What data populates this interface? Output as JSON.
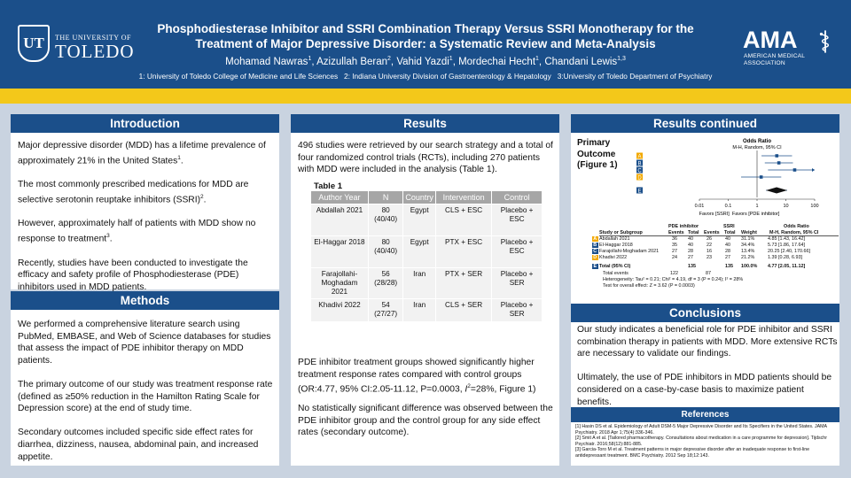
{
  "header": {
    "university_small": "THE UNIVERSITY OF",
    "university_big": "TOLEDO",
    "ut_monogram": "UT",
    "title_line1": "Phosphodiesterase Inhibitor and SSRI Combination Therapy Versus SSRI Monotherapy for the",
    "title_line2": "Treatment of Major Depressive Disorder: a Systematic Review and Meta-Analysis",
    "authors": [
      {
        "name": "Mohamad Nawras",
        "sup": "1"
      },
      {
        "name": "Azizullah Beran",
        "sup": "2"
      },
      {
        "name": "Vahid Yazdi",
        "sup": "1"
      },
      {
        "name": "Mordechai Hecht",
        "sup": "1"
      },
      {
        "name": "Chandani Lewis",
        "sup": "1,3"
      }
    ],
    "affiliations": "1: University of Toledo College of Medicine and Life Sciences   2: Indiana University Division of Gastroenterology & Hepatology   3:University of Toledo Department of Psychiatry",
    "ama_word": "AMA",
    "ama_sub1": "AMERICAN MEDICAL",
    "ama_sub2": "ASSOCIATION"
  },
  "introduction": {
    "title": "Introduction",
    "p1": "Major depressive disorder (MDD) has a lifetime prevalence of approximately 21% in the United States",
    "p1_sup": "1",
    "p1_end": ".",
    "p2": "The most commonly prescribed medications for MDD are selective serotonin reuptake inhibitors (SSRI)",
    "p2_sup": "2",
    "p2_end": ".",
    "p3": "However, approximately half of patients with MDD show no response to treatment",
    "p3_sup": "3",
    "p3_end": ".",
    "p4": "Recently, studies have been conducted to investigate the efficacy and safety profile of Phosphodiesterase (PDE) inhibitors used in MDD patients."
  },
  "methods": {
    "title": "Methods",
    "p1": "We performed a comprehensive literature search using PubMed, EMBASE, and Web of Science databases for studies that assess the impact of PDE inhibitor therapy on MDD patients.",
    "p2": "The primary outcome of our study was treatment response rate (defined as ≥50% reduction in the Hamilton Rating Scale for Depression score) at the end of study time.",
    "p3": "Secondary outcomes included specific side effect rates for diarrhea, dizziness, nausea, abdominal pain, and increased appetite."
  },
  "results": {
    "title": "Results",
    "p1": "496 studies were retrieved by our search strategy and a total of four randomized control trials (RCTs), including 270 patients with MDD were included in the analysis (Table 1).",
    "table_title": "Table 1",
    "columns": [
      "Author Year",
      "N",
      "Country",
      "Intervention",
      "Control"
    ],
    "rows": [
      [
        "Abdallah 2021",
        "80 (40/40)",
        "Egypt",
        "CLS + ESC",
        "Placebo + ESC"
      ],
      [
        "El-Haggar 2018",
        "80 (40/40)",
        "Egypt",
        "PTX + ESC",
        "Placebo + ESC"
      ],
      [
        "Farajollahi-Moghadam 2021",
        "56 (28/28)",
        "Iran",
        "PTX + SER",
        "Placebo + SER"
      ],
      [
        "Khadivi 2022",
        "54 (27/27)",
        "Iran",
        "CLS + SER",
        "Placebo + SER"
      ]
    ],
    "p2a": "PDE inhibitor treatment groups showed significantly higher treatment response rates compared with control groups (OR:4.77, 95% CI:2.05-11.12, P=0.0003, ",
    "p2_i": "I",
    "p2_sup": "2",
    "p2b": "=28%, Figure 1)",
    "p3": "No statistically significant difference was observed between the PDE inhibitor group and the control group for any side effect rates (secondary outcome)."
  },
  "results_continued": {
    "title": "Results continued",
    "figure_label_1": "Primary",
    "figure_label_2": "Outcome",
    "figure_label_3": "(Figure 1)"
  },
  "chart_data": {
    "type": "scatter",
    "title": "Odds Ratio",
    "subtitle": "M-H, Random, 95% CI",
    "xlabel": "Favors [SSRI]  Favors [PDE inhibitor]",
    "x_scale": "log",
    "xlim": [
      0.01,
      100
    ],
    "ticks": [
      "0.01",
      "0.1",
      "1",
      "10",
      "100"
    ],
    "row_labels": [
      "A",
      "B",
      "C",
      "D",
      "E"
    ],
    "columns": [
      "Study or Subgroup",
      "Events",
      "Total",
      "Events",
      "Total",
      "Weight",
      "M-H, Random, 95% CI"
    ],
    "group_headers": [
      "PDE inhibitor",
      "SSRI",
      "Odds Ratio"
    ],
    "studies": [
      {
        "label": "A",
        "name": "Abdallah 2021",
        "pde_events": 36,
        "pde_total": 40,
        "ssri_events": 26,
        "ssri_total": 40,
        "weight": "31.1%",
        "or": 4.85,
        "lower": 1.43,
        "upper": 16.42,
        "ci_text": "4.85 [1.43, 16.42]"
      },
      {
        "label": "B",
        "name": "El-Haggar 2018",
        "pde_events": 35,
        "pde_total": 40,
        "ssri_events": 22,
        "ssri_total": 40,
        "weight": "34.4%",
        "or": 5.73,
        "lower": 1.86,
        "upper": 17.64,
        "ci_text": "5.73 [1.86, 17.64]"
      },
      {
        "label": "C",
        "name": "Farajollahi-Moghadam 2021",
        "pde_events": 27,
        "pde_total": 28,
        "ssri_events": 16,
        "ssri_total": 28,
        "weight": "13.4%",
        "or": 20.25,
        "lower": 2.4,
        "upper": 170.66,
        "ci_text": "20.25 [2.40, 170.66]"
      },
      {
        "label": "D",
        "name": "Khadivi 2022",
        "pde_events": 24,
        "pde_total": 27,
        "ssri_events": 23,
        "ssri_total": 27,
        "weight": "21.2%",
        "or": 1.39,
        "lower": 0.28,
        "upper": 6.93,
        "ci_text": "1.39 [0.28, 6.93]"
      }
    ],
    "total": {
      "label": "E",
      "name": "Total (95% CI)",
      "pde_total": 135,
      "ssri_total": 135,
      "weight": "100.0%",
      "or": 4.77,
      "lower": 2.05,
      "upper": 11.12,
      "ci_text": "4.77 [2.05, 11.12]"
    },
    "total_events": {
      "name": "Total events",
      "pde": 122,
      "ssri": 87
    },
    "heterogeneity": "Heterogeneity: Tau² = 0.21; Chi² = 4.19, df = 3 (P = 0.24); I² = 28%",
    "overall_effect": "Test for overall effect: Z = 3.62 (P = 0.0003)"
  },
  "conclusions": {
    "title": "Conclusions",
    "p1": "Our study indicates a beneficial role for PDE inhibitor and SSRI combination therapy in patients with MDD. More extensive RCTs are necessary to validate our findings.",
    "p2": "Ultimately, the use of PDE inhibitors in MDD patients should be considered on a case-by-case basis to maximize patient benefits."
  },
  "references": {
    "title": "References",
    "items": [
      "[1] Hasin DS et al. Epidemiology of Adult DSM-5 Major Depressive Disorder and Its Specifiers in the United States. JAMA Psychiatry. 2018 Apr 1;75(4):336-346.",
      "[2] Smit A et al. [Tailored pharmacotherapy. Consultations about medication in a care programme for depression]. Tijdschr Psychiatr. 2016;58(12):881-885.",
      "[3] Garcia-Toro M et al. Treatment patterns in major depressive disorder after an inadequate response to first-line antidepressant treatment. BMC Psychiatry. 2012 Sep 18;12:143."
    ]
  }
}
